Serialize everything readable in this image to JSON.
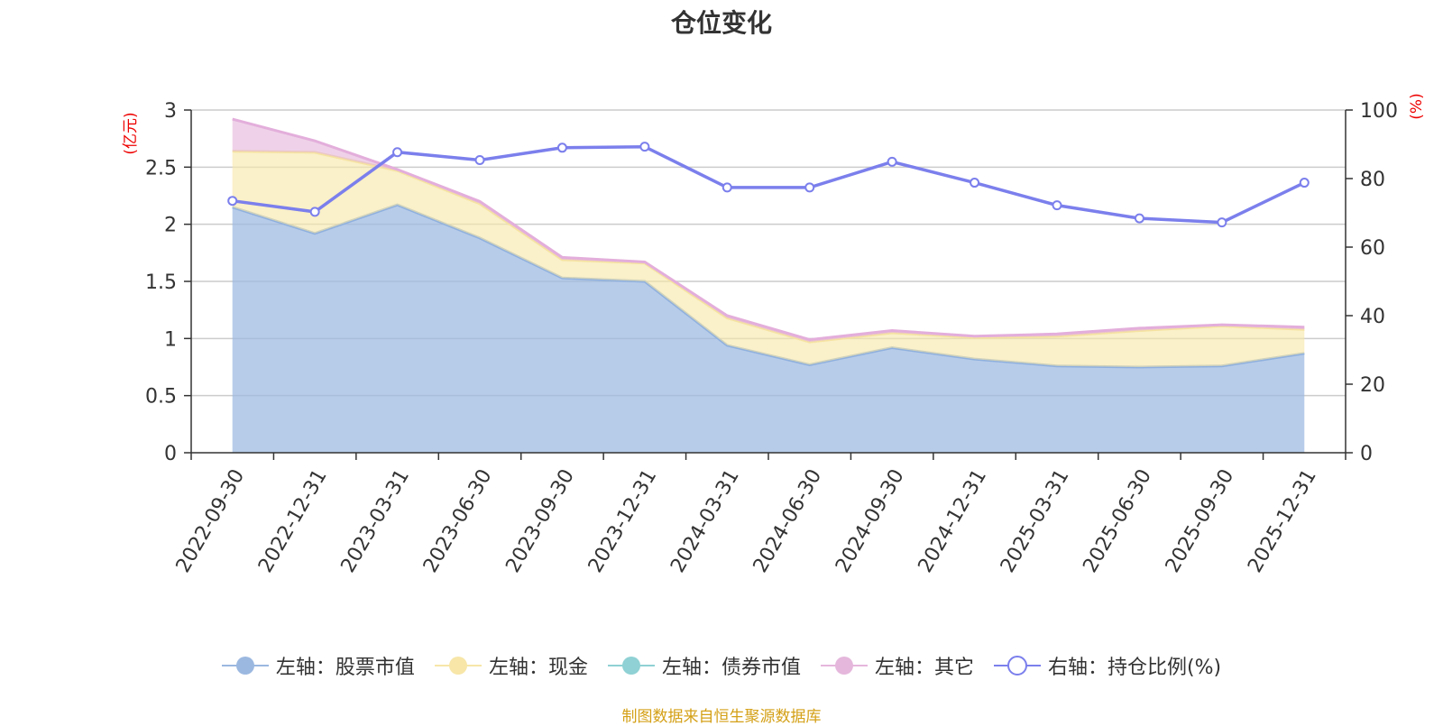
{
  "chart_data": {
    "type": "area",
    "title": "仓位变化",
    "categories": [
      "2022-09-30",
      "2022-12-31",
      "2023-03-31",
      "2023-06-30",
      "2023-09-30",
      "2023-12-31",
      "2024-03-31",
      "2024-06-30",
      "2024-09-30",
      "2024-12-31",
      "2025-03-31",
      "2025-06-30",
      "2025-09-30",
      "2025-12-31"
    ],
    "left_axis": {
      "unit": "(亿元)",
      "ylim": [
        0,
        3
      ],
      "ticks": [
        "0",
        "0.5",
        "1",
        "1.5",
        "2",
        "2.5",
        "3"
      ]
    },
    "right_axis": {
      "unit": "(%)",
      "ylim": [
        0,
        100
      ],
      "ticks": [
        "0",
        "20",
        "40",
        "60",
        "80",
        "100"
      ]
    },
    "series": [
      {
        "name": "左轴：股票市值",
        "axis": "left",
        "stack": true,
        "color": "#9bb8e0",
        "values": [
          2.15,
          1.92,
          2.17,
          1.88,
          1.53,
          1.5,
          0.94,
          0.77,
          0.92,
          0.82,
          0.76,
          0.75,
          0.76,
          0.87
        ]
      },
      {
        "name": "左轴：现金",
        "axis": "left",
        "stack": true,
        "color": "#f7e6a8",
        "values": [
          0.49,
          0.71,
          0.3,
          0.3,
          0.16,
          0.16,
          0.24,
          0.2,
          0.13,
          0.19,
          0.26,
          0.32,
          0.35,
          0.21
        ]
      },
      {
        "name": "左轴：债券市值",
        "axis": "left",
        "stack": true,
        "color": "#8fd1d4",
        "values": [
          0,
          0,
          0,
          0,
          0,
          0,
          0,
          0,
          0,
          0,
          0,
          0,
          0,
          0
        ]
      },
      {
        "name": "左轴：其它",
        "axis": "left",
        "stack": true,
        "color": "#e5b7dc",
        "values": [
          0.28,
          0.1,
          0.01,
          0.02,
          0.02,
          0.01,
          0.02,
          0.02,
          0.02,
          0.01,
          0.02,
          0.02,
          0.01,
          0.02
        ]
      },
      {
        "name": "右轴：持仓比例(%)",
        "axis": "right",
        "type": "line",
        "color": "#7b7fec",
        "values": [
          73.5,
          70.3,
          87.7,
          85.4,
          89.0,
          89.3,
          77.4,
          77.4,
          84.9,
          78.8,
          72.2,
          68.4,
          67.2,
          78.8
        ]
      }
    ],
    "legend": "bottom-center",
    "grid": true
  },
  "footer": {
    "source": "制图数据来自恒生聚源数据库"
  }
}
